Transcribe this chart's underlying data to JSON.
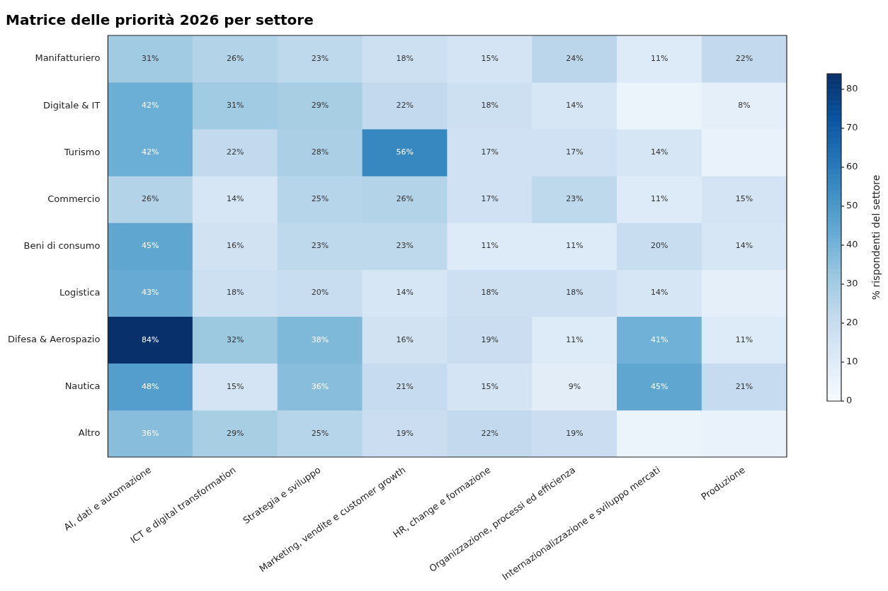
{
  "chart_data": {
    "type": "heatmap",
    "title": "Matrice delle priorità 2026 per settore",
    "clabel": "% rispondenti del settore",
    "categories": [
      "AI, dati e automazione",
      "ICT e digital transformation",
      "Strategia e sviluppo",
      "Marketing, vendite e customer growth",
      "HR, change e formazione",
      "Organizzazione, processi ed efficienza",
      "Internazionalizzazione e sviluppo mercati",
      "Produzione"
    ],
    "y_categories": [
      "Manifatturiero",
      "Digitale & IT",
      "Turismo",
      "Commercio",
      "Beni di consumo",
      "Logistica",
      "Difesa & Aerospazio",
      "Nautica",
      "Altro"
    ],
    "cells": [
      [
        31,
        26,
        23,
        18,
        15,
        24,
        11,
        22
      ],
      [
        42,
        31,
        29,
        22,
        18,
        14,
        5,
        8
      ],
      [
        42,
        22,
        28,
        56,
        17,
        17,
        14,
        6
      ],
      [
        26,
        14,
        25,
        26,
        17,
        23,
        11,
        15
      ],
      [
        45,
        16,
        23,
        23,
        11,
        11,
        20,
        14
      ],
      [
        43,
        18,
        20,
        14,
        18,
        18,
        14,
        8
      ],
      [
        84,
        32,
        38,
        16,
        19,
        11,
        41,
        11
      ],
      [
        48,
        15,
        36,
        21,
        15,
        9,
        45,
        21
      ],
      [
        36,
        29,
        25,
        19,
        22,
        19,
        5,
        6
      ]
    ],
    "cell_labels": [
      [
        "31%",
        "26%",
        "23%",
        "18%",
        "15%",
        "24%",
        "11%",
        "22%"
      ],
      [
        "42%",
        "31%",
        "29%",
        "22%",
        "18%",
        "14%",
        null,
        "8%"
      ],
      [
        "42%",
        "22%",
        "28%",
        "56%",
        "17%",
        "17%",
        "14%",
        null
      ],
      [
        "26%",
        "14%",
        "25%",
        "26%",
        "17%",
        "23%",
        "11%",
        "15%"
      ],
      [
        "45%",
        "16%",
        "23%",
        "23%",
        "11%",
        "11%",
        "20%",
        "14%"
      ],
      [
        "43%",
        "18%",
        "20%",
        "14%",
        "18%",
        "18%",
        "14%",
        null
      ],
      [
        "84%",
        "32%",
        "38%",
        "16%",
        "19%",
        "11%",
        "41%",
        "11%"
      ],
      [
        "48%",
        "15%",
        "36%",
        "21%",
        "15%",
        "9%",
        "45%",
        "21%"
      ],
      [
        "36%",
        "29%",
        "25%",
        "19%",
        "22%",
        "19%",
        null,
        null
      ]
    ],
    "clim": [
      0,
      84
    ],
    "cticks": [
      0,
      10,
      20,
      30,
      40,
      50,
      60,
      70,
      80
    ]
  }
}
